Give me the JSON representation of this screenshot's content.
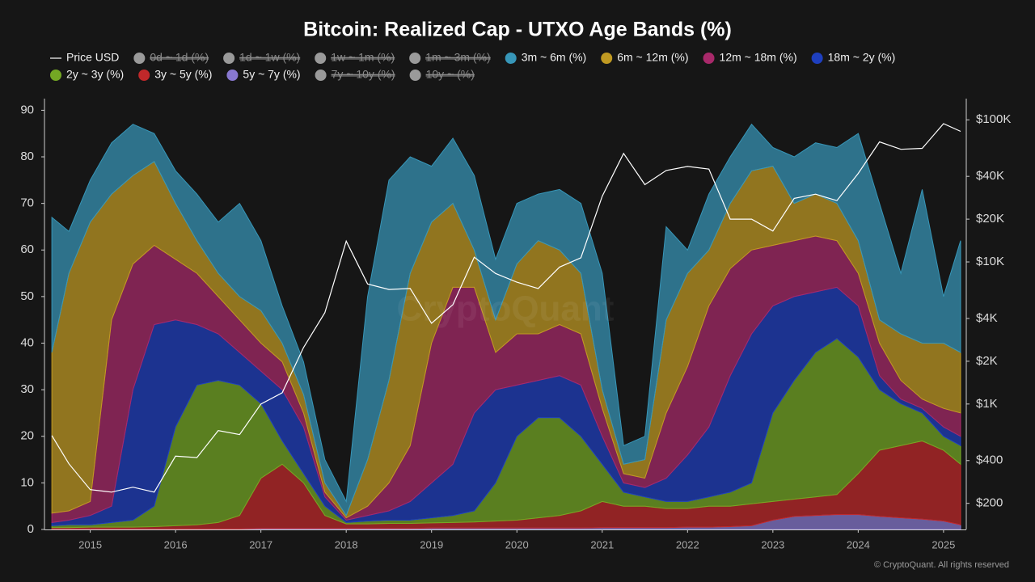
{
  "chart_data": {
    "type": "stacked_area",
    "title": "Bitcoin: Realized Cap - UTXO Age Bands (%)",
    "watermark": "CryptoQuant",
    "footer": "© CryptoQuant. All rights reserved",
    "x": [
      2014.55,
      2014.75,
      2015,
      2015.25,
      2015.5,
      2015.75,
      2016,
      2016.25,
      2016.5,
      2016.75,
      2017,
      2017.25,
      2017.5,
      2017.75,
      2018,
      2018.25,
      2018.5,
      2018.75,
      2019,
      2019.25,
      2019.5,
      2019.75,
      2020,
      2020.25,
      2020.5,
      2020.75,
      2021,
      2021.25,
      2021.5,
      2021.75,
      2022,
      2022.25,
      2022.5,
      2022.75,
      2023,
      2023.25,
      2023.5,
      2023.75,
      2024,
      2024.25,
      2024.5,
      2024.75,
      2025,
      2025.2
    ],
    "xlim": [
      2014.53,
      2025.2
    ],
    "xticks": [
      2015,
      2016,
      2017,
      2018,
      2019,
      2020,
      2021,
      2022,
      2023,
      2024,
      2025
    ],
    "ylim": [
      0,
      92.5
    ],
    "yticks": [
      0,
      10,
      20,
      30,
      40,
      50,
      60,
      70,
      80,
      90
    ],
    "y2lim": [
      131,
      141000
    ],
    "y2scale": "log",
    "y2ticks": [
      {
        "value": 200,
        "label": "$200"
      },
      {
        "value": 400,
        "label": "$400"
      },
      {
        "value": 1000,
        "label": "$1K"
      },
      {
        "value": 2000,
        "label": "$2K"
      },
      {
        "value": 4000,
        "label": "$4K"
      },
      {
        "value": 10000,
        "label": "$10K"
      },
      {
        "value": 20000,
        "label": "$20K"
      },
      {
        "value": 40000,
        "label": "$40K"
      },
      {
        "value": 100000,
        "label": "$100K"
      }
    ],
    "grid": false,
    "series": [
      {
        "name": "Price USD",
        "color": "#ffffff",
        "axis": "y2",
        "type": "line",
        "values": [
          600,
          380,
          250,
          240,
          260,
          240,
          430,
          420,
          650,
          610,
          1000,
          1200,
          2500,
          4400,
          14000,
          7000,
          6400,
          6500,
          3700,
          5000,
          10800,
          8300,
          7200,
          6500,
          9200,
          10700,
          29000,
          58000,
          35000,
          44000,
          47000,
          45000,
          20000,
          20000,
          16500,
          28000,
          30000,
          27000,
          42000,
          70000,
          62000,
          63000,
          94000,
          83000
        ]
      },
      {
        "name": "0d ~ 1d (%)",
        "color": "#9a9a9a",
        "hidden": true
      },
      {
        "name": "1d ~ 1w (%)",
        "color": "#9a9a9a",
        "hidden": true
      },
      {
        "name": "1w ~ 1m (%)",
        "color": "#9a9a9a",
        "hidden": true
      },
      {
        "name": "1m ~ 3m (%)",
        "color": "#9a9a9a",
        "hidden": true
      },
      {
        "name": "3m ~ 6m (%)",
        "color": "#3796b8",
        "values": [
          29,
          9,
          9,
          11,
          11,
          6,
          7,
          10,
          11,
          20,
          15,
          8,
          7,
          5,
          3,
          35,
          43,
          25,
          12,
          14,
          16,
          13,
          13,
          10,
          13,
          15,
          25,
          4,
          5,
          20,
          5,
          12,
          10,
          10,
          4,
          10,
          11,
          12,
          23,
          25,
          13,
          33,
          10,
          24
        ]
      },
      {
        "name": "6m ~ 12m (%)",
        "color": "#c09a22",
        "values": [
          34.5,
          51,
          60,
          27,
          19,
          18,
          12,
          7,
          5,
          5,
          7,
          4,
          4,
          2,
          0.5,
          10,
          22,
          37,
          26,
          18,
          8,
          7,
          15,
          20,
          16,
          13,
          4,
          2,
          4,
          20,
          20,
          12,
          14,
          17,
          17,
          8,
          9,
          8,
          7,
          5,
          10,
          12,
          14,
          13
        ]
      },
      {
        "name": "12m ~ 18m (%)",
        "color": "#a8296a",
        "values": [
          2,
          2,
          3,
          40,
          27,
          17,
          13,
          11,
          8,
          7,
          6,
          6,
          3,
          1,
          0.5,
          2,
          6,
          12,
          30,
          38,
          27,
          8,
          11,
          10,
          11,
          11,
          6,
          2,
          2,
          14,
          19,
          26,
          23,
          18,
          13,
          12,
          12,
          10,
          7,
          7,
          4,
          2,
          4,
          5
        ]
      },
      {
        "name": "18m ~ 2y (%)",
        "color": "#1e3fbf",
        "values": [
          0.7,
          1,
          2,
          3.5,
          28,
          39,
          23,
          13,
          10,
          7,
          7,
          11,
          10,
          2,
          0.5,
          1.2,
          2,
          4,
          7.5,
          11,
          21,
          20,
          11,
          8,
          9,
          11,
          6,
          2,
          2,
          5,
          10,
          15,
          25,
          32,
          23,
          18,
          13,
          11,
          11,
          3,
          1,
          1,
          2,
          2
        ]
      },
      {
        "name": "2y ~ 3y (%)",
        "color": "#74a824",
        "values": [
          0.4,
          0.6,
          0.5,
          1,
          1.5,
          4.4,
          21.2,
          30,
          30.5,
          28,
          16,
          5,
          2,
          2,
          0.3,
          0.6,
          0.7,
          0.7,
          1.1,
          1.5,
          2.4,
          8.2,
          18,
          21.5,
          21,
          16,
          8,
          3,
          2,
          1.5,
          1.5,
          2,
          3,
          4.5,
          19,
          25.5,
          31,
          33.5,
          25,
          13,
          9,
          6,
          3,
          4
        ]
      },
      {
        "name": "3y ~ 5y (%)",
        "color": "#c0282a",
        "values": [
          0.3,
          0.3,
          0.4,
          0.4,
          0.4,
          0.5,
          0.7,
          0.9,
          1.4,
          2.9,
          10.8,
          13.8,
          9.8,
          2.8,
          1,
          1,
          1.1,
          1.1,
          1.1,
          1.2,
          1.3,
          1.5,
          1.7,
          2.2,
          2.7,
          3.7,
          5.6,
          4.6,
          4.6,
          4.1,
          4,
          4.5,
          4.4,
          4.7,
          4,
          3.7,
          4,
          4.3,
          8.8,
          14.2,
          15.5,
          16.8,
          15.2,
          13
        ]
      },
      {
        "name": "5y ~ 7y (%)",
        "color": "#8878d0",
        "values": [
          0.1,
          0.1,
          0.1,
          0.1,
          0.1,
          0.1,
          0.1,
          0.1,
          0.1,
          0.1,
          0.2,
          0.2,
          0.2,
          0.2,
          0.2,
          0.2,
          0.2,
          0.2,
          0.3,
          0.3,
          0.3,
          0.3,
          0.3,
          0.3,
          0.3,
          0.3,
          0.4,
          0.4,
          0.4,
          0.4,
          0.5,
          0.5,
          0.6,
          0.8,
          2,
          2.8,
          3,
          3.2,
          3.2,
          2.8,
          2.5,
          2.2,
          1.8,
          1
        ]
      },
      {
        "name": "7y ~ 10y (%)",
        "color": "#9a9a9a",
        "hidden": true
      },
      {
        "name": "10y ~ (%)",
        "color": "#9a9a9a",
        "hidden": true
      }
    ]
  }
}
